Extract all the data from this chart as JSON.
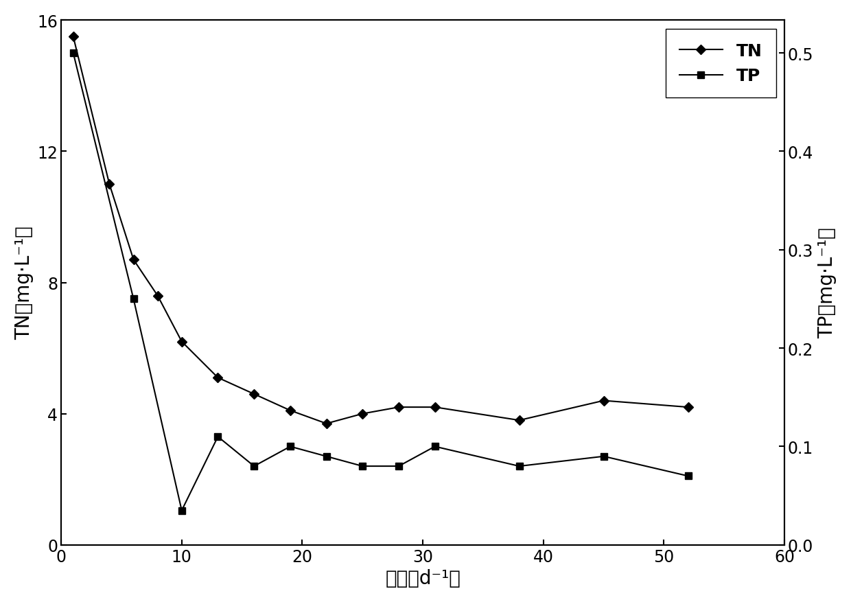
{
  "TN_x": [
    1,
    4,
    6,
    8,
    10,
    13,
    16,
    19,
    22,
    25,
    28,
    31,
    38,
    45,
    52
  ],
  "TN_y": [
    15.5,
    11.0,
    8.7,
    7.6,
    6.2,
    5.1,
    4.6,
    4.1,
    3.7,
    4.0,
    4.2,
    4.2,
    3.8,
    4.4,
    4.2
  ],
  "TP_x": [
    1,
    6,
    10,
    13,
    16,
    19,
    22,
    25,
    28,
    31,
    38,
    45,
    52
  ],
  "TP_y": [
    0.5,
    0.25,
    0.035,
    0.11,
    0.08,
    0.1,
    0.09,
    0.08,
    0.08,
    0.1,
    0.08,
    0.09,
    0.07
  ],
  "TN_label": "TN",
  "TP_label": "TP",
  "xlabel": "时间（d⁻¹）",
  "ylabel_left": "TN（mg·L⁻¹）",
  "ylabel_right": "TP（mg·L⁻¹）",
  "xlim": [
    0,
    60
  ],
  "ylim_left": [
    0,
    16
  ],
  "ylim_right": [
    0.0,
    0.5333
  ],
  "xticks": [
    0,
    10,
    20,
    30,
    40,
    50,
    60
  ],
  "yticks_left": [
    0,
    4,
    8,
    12,
    16
  ],
  "yticks_right": [
    0.0,
    0.1,
    0.2,
    0.3,
    0.4,
    0.5
  ],
  "line_color": "#000000",
  "marker_TN": "D",
  "marker_TP": "s",
  "markersize": 7,
  "linewidth": 1.5,
  "fontsize_label": 20,
  "fontsize_tick": 17,
  "fontsize_legend": 18,
  "background_color": "#ffffff"
}
